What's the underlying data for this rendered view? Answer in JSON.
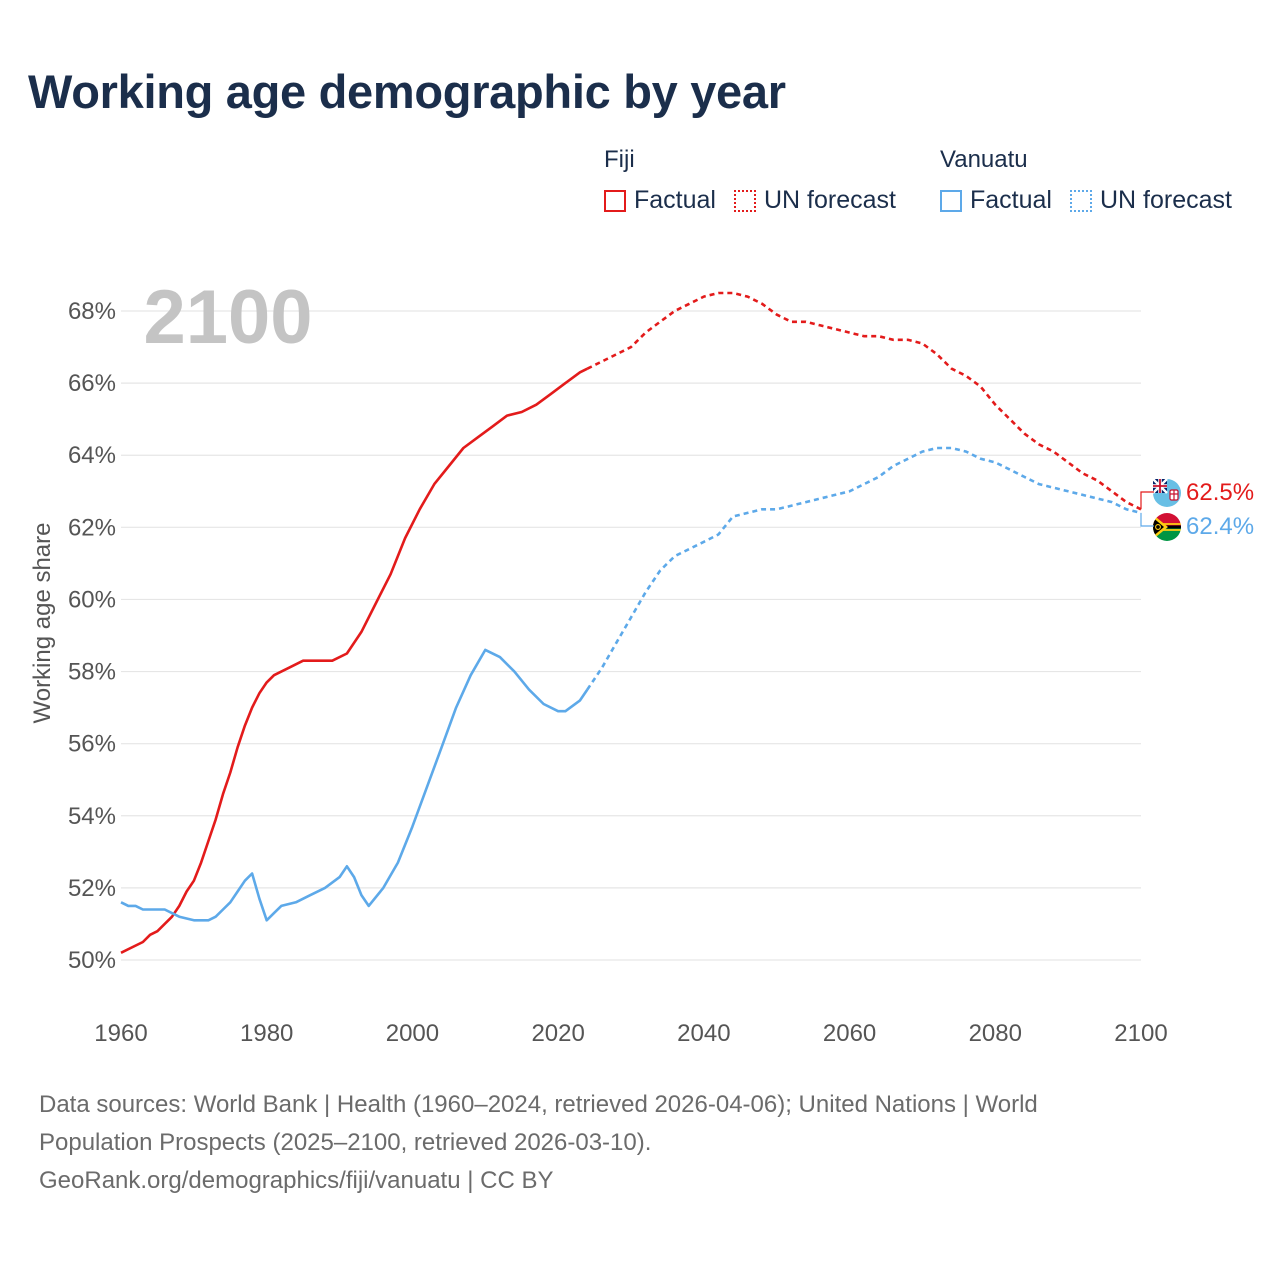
{
  "title": "Working age demographic by year",
  "legend": {
    "fiji": {
      "country": "Fiji",
      "factual": "Factual",
      "forecast": "UN forecast"
    },
    "vanuatu": {
      "country": "Vanuatu",
      "factual": "Factual",
      "forecast": "UN forecast"
    }
  },
  "colors": {
    "fiji": "#e31b1b",
    "vanuatu": "#5da9e9",
    "grid": "#e6e6e6",
    "axis_text": "#555555",
    "year_watermark": "#c4c4c4"
  },
  "footer": {
    "line1": "Data sources: World Bank | Health (1960–2024, retrieved 2026-04-06); United Nations | World",
    "line2": "Population Prospects (2025–2100, retrieved 2026-03-10).",
    "line3": "GeoRank.org/demographics/fiji/vanuatu | CC BY"
  },
  "chart_data": {
    "type": "line",
    "year_label": "2100",
    "ylabel": "Working age share",
    "xlabel": "",
    "xlim": [
      1960,
      2100
    ],
    "ylim": [
      49.5,
      69
    ],
    "x_ticks": [
      1960,
      1980,
      2000,
      2020,
      2040,
      2060,
      2080,
      2100
    ],
    "y_ticks": [
      50,
      52,
      54,
      56,
      58,
      60,
      62,
      64,
      66,
      68
    ],
    "y_tick_suffix": "%",
    "forecast_start_year": 2024,
    "series": [
      {
        "name": "Fiji",
        "end_label": "62.5%",
        "points": [
          [
            1960,
            50.2
          ],
          [
            1963,
            50.5
          ],
          [
            1964,
            50.7
          ],
          [
            1965,
            50.8
          ],
          [
            1967,
            51.2
          ],
          [
            1968,
            51.5
          ],
          [
            1969,
            51.9
          ],
          [
            1970,
            52.2
          ],
          [
            1971,
            52.7
          ],
          [
            1972,
            53.3
          ],
          [
            1973,
            53.9
          ],
          [
            1974,
            54.6
          ],
          [
            1975,
            55.2
          ],
          [
            1976,
            55.9
          ],
          [
            1977,
            56.5
          ],
          [
            1978,
            57.0
          ],
          [
            1979,
            57.4
          ],
          [
            1980,
            57.7
          ],
          [
            1981,
            57.9
          ],
          [
            1983,
            58.1
          ],
          [
            1985,
            58.3
          ],
          [
            1987,
            58.3
          ],
          [
            1989,
            58.3
          ],
          [
            1991,
            58.5
          ],
          [
            1993,
            59.1
          ],
          [
            1995,
            59.9
          ],
          [
            1997,
            60.7
          ],
          [
            1999,
            61.7
          ],
          [
            2001,
            62.5
          ],
          [
            2003,
            63.2
          ],
          [
            2005,
            63.7
          ],
          [
            2007,
            64.2
          ],
          [
            2009,
            64.5
          ],
          [
            2011,
            64.8
          ],
          [
            2013,
            65.1
          ],
          [
            2015,
            65.2
          ],
          [
            2017,
            65.4
          ],
          [
            2019,
            65.7
          ],
          [
            2021,
            66.0
          ],
          [
            2023,
            66.3
          ],
          [
            2024,
            66.4
          ],
          [
            2026,
            66.6
          ],
          [
            2028,
            66.8
          ],
          [
            2030,
            67.0
          ],
          [
            2032,
            67.4
          ],
          [
            2034,
            67.7
          ],
          [
            2036,
            68.0
          ],
          [
            2038,
            68.2
          ],
          [
            2040,
            68.4
          ],
          [
            2042,
            68.5
          ],
          [
            2044,
            68.5
          ],
          [
            2046,
            68.4
          ],
          [
            2048,
            68.2
          ],
          [
            2050,
            67.9
          ],
          [
            2052,
            67.7
          ],
          [
            2054,
            67.7
          ],
          [
            2056,
            67.6
          ],
          [
            2058,
            67.5
          ],
          [
            2060,
            67.4
          ],
          [
            2062,
            67.3
          ],
          [
            2064,
            67.3
          ],
          [
            2066,
            67.2
          ],
          [
            2068,
            67.2
          ],
          [
            2070,
            67.1
          ],
          [
            2072,
            66.8
          ],
          [
            2074,
            66.4
          ],
          [
            2076,
            66.2
          ],
          [
            2078,
            65.9
          ],
          [
            2080,
            65.4
          ],
          [
            2082,
            65.0
          ],
          [
            2084,
            64.6
          ],
          [
            2086,
            64.3
          ],
          [
            2088,
            64.1
          ],
          [
            2090,
            63.8
          ],
          [
            2092,
            63.5
          ],
          [
            2094,
            63.3
          ],
          [
            2096,
            63.0
          ],
          [
            2098,
            62.7
          ],
          [
            2100,
            62.5
          ]
        ]
      },
      {
        "name": "Vanuatu",
        "end_label": "62.4%",
        "points": [
          [
            1960,
            51.6
          ],
          [
            1961,
            51.5
          ],
          [
            1962,
            51.5
          ],
          [
            1963,
            51.4
          ],
          [
            1966,
            51.4
          ],
          [
            1968,
            51.2
          ],
          [
            1970,
            51.1
          ],
          [
            1972,
            51.1
          ],
          [
            1973,
            51.2
          ],
          [
            1974,
            51.4
          ],
          [
            1975,
            51.6
          ],
          [
            1976,
            51.9
          ],
          [
            1977,
            52.2
          ],
          [
            1978,
            52.4
          ],
          [
            1979,
            51.7
          ],
          [
            1980,
            51.1
          ],
          [
            1981,
            51.3
          ],
          [
            1982,
            51.5
          ],
          [
            1984,
            51.6
          ],
          [
            1986,
            51.8
          ],
          [
            1988,
            52.0
          ],
          [
            1990,
            52.3
          ],
          [
            1991,
            52.6
          ],
          [
            1992,
            52.3
          ],
          [
            1993,
            51.8
          ],
          [
            1994,
            51.5
          ],
          [
            1996,
            52.0
          ],
          [
            1998,
            52.7
          ],
          [
            2000,
            53.7
          ],
          [
            2002,
            54.8
          ],
          [
            2004,
            55.9
          ],
          [
            2006,
            57.0
          ],
          [
            2008,
            57.9
          ],
          [
            2010,
            58.6
          ],
          [
            2012,
            58.4
          ],
          [
            2014,
            58.0
          ],
          [
            2016,
            57.5
          ],
          [
            2018,
            57.1
          ],
          [
            2020,
            56.9
          ],
          [
            2021,
            56.9
          ],
          [
            2023,
            57.2
          ],
          [
            2024,
            57.5
          ],
          [
            2026,
            58.1
          ],
          [
            2028,
            58.8
          ],
          [
            2030,
            59.5
          ],
          [
            2032,
            60.2
          ],
          [
            2034,
            60.8
          ],
          [
            2036,
            61.2
          ],
          [
            2038,
            61.4
          ],
          [
            2040,
            61.6
          ],
          [
            2042,
            61.8
          ],
          [
            2044,
            62.3
          ],
          [
            2046,
            62.4
          ],
          [
            2048,
            62.5
          ],
          [
            2050,
            62.5
          ],
          [
            2052,
            62.6
          ],
          [
            2054,
            62.7
          ],
          [
            2056,
            62.8
          ],
          [
            2058,
            62.9
          ],
          [
            2060,
            63.0
          ],
          [
            2062,
            63.2
          ],
          [
            2064,
            63.4
          ],
          [
            2066,
            63.7
          ],
          [
            2068,
            63.9
          ],
          [
            2070,
            64.1
          ],
          [
            2072,
            64.2
          ],
          [
            2074,
            64.2
          ],
          [
            2076,
            64.1
          ],
          [
            2078,
            63.9
          ],
          [
            2080,
            63.8
          ],
          [
            2082,
            63.6
          ],
          [
            2084,
            63.4
          ],
          [
            2086,
            63.2
          ],
          [
            2088,
            63.1
          ],
          [
            2090,
            63.0
          ],
          [
            2092,
            62.9
          ],
          [
            2094,
            62.8
          ],
          [
            2096,
            62.7
          ],
          [
            2098,
            62.5
          ],
          [
            2100,
            62.4
          ]
        ]
      }
    ]
  }
}
